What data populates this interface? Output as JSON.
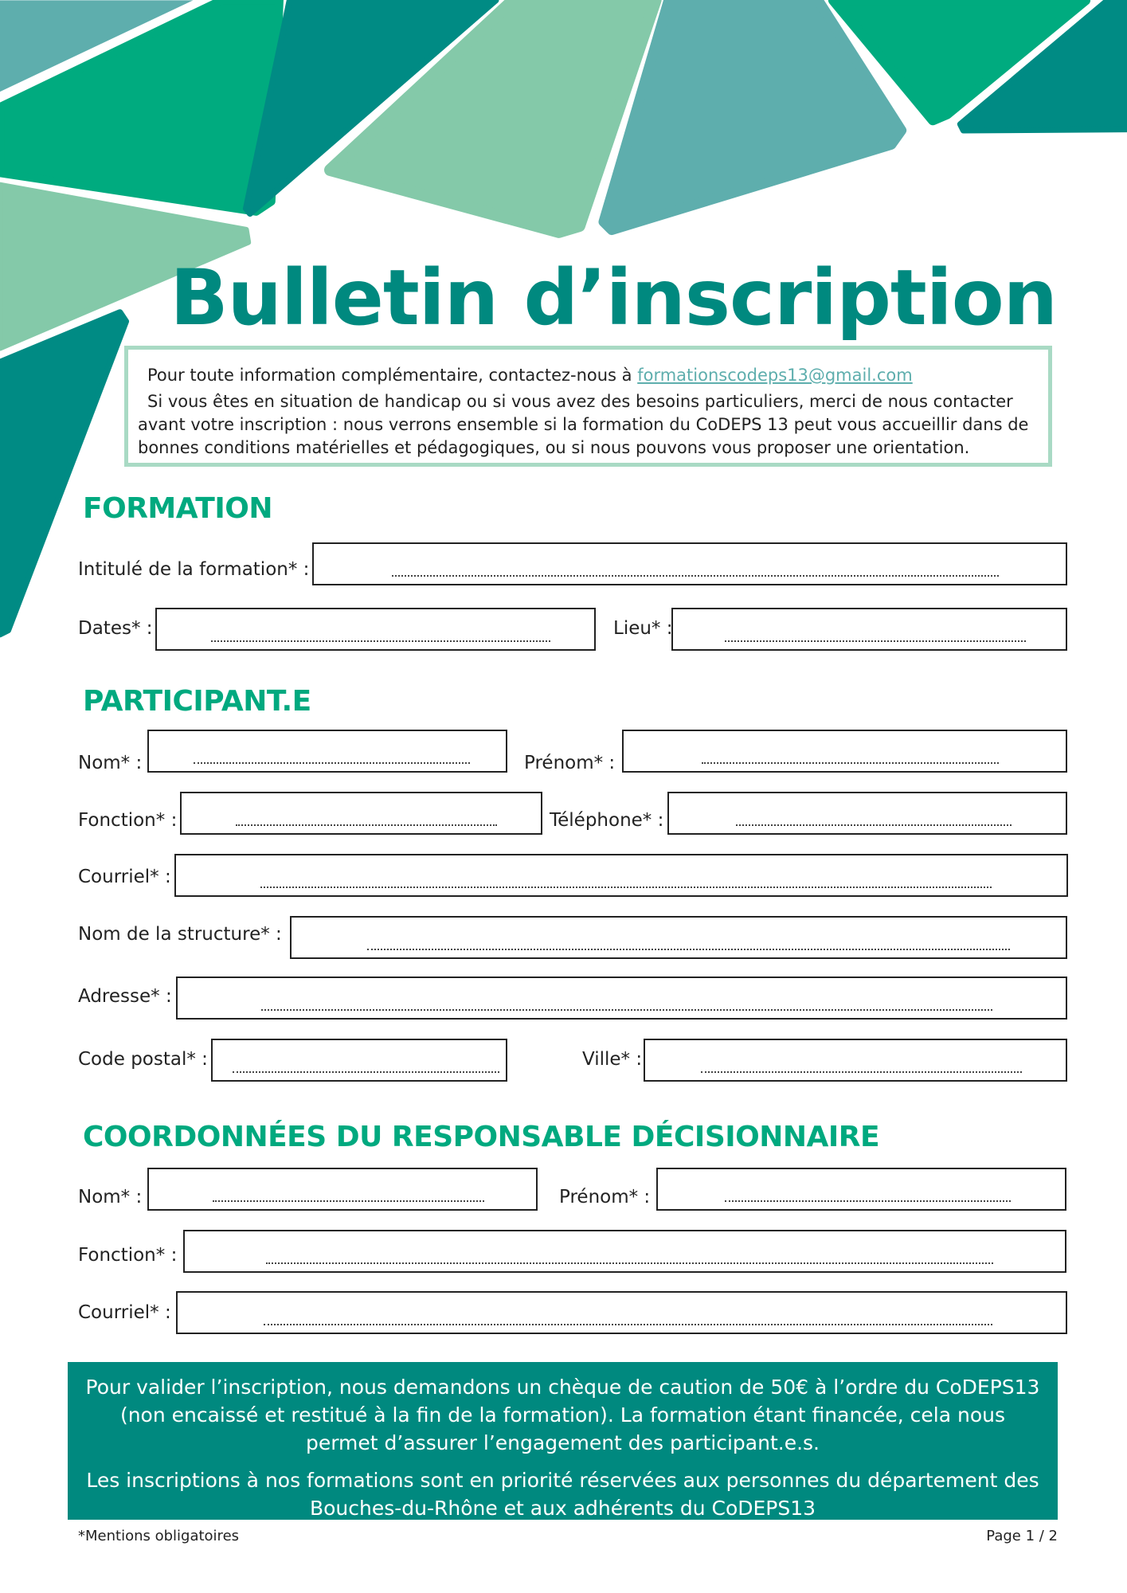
{
  "title": "Bulletin d’inscription",
  "info": {
    "line1_prefix": "Pour toute information complémentaire, contactez-nous à ",
    "email": "formationscodeps13@gmail.com",
    "line2": "Si vous êtes en situation de handicap ou si vous avez des besoins particuliers, merci de nous contacter avant votre inscription : nous verrons ensemble si la formation du CoDEPS 13 peut vous accueillir dans de bonnes conditions matérielles et pédagogiques, ou si nous pouvons vous proposer une orientation."
  },
  "sections": {
    "formation": {
      "heading": "FORMATION",
      "intitule": "Intitulé de la formation* :",
      "dates": "Dates* :",
      "lieu": "Lieu* :"
    },
    "participant": {
      "heading": "PARTICIPANT.E",
      "nom": "Nom* :",
      "prenom": "Prénom* :",
      "fonction": "Fonction* :",
      "telephone": "Téléphone* :",
      "courriel": "Courriel* :",
      "structure": "Nom de la structure* :",
      "adresse": "Adresse* :",
      "code_postal": "Code postal* :",
      "ville": "Ville* :"
    },
    "responsable": {
      "heading": "COORDONNÉES DU RESPONSABLE DÉCISIONNAIRE",
      "nom": "Nom* :",
      "prenom": "Prénom* :",
      "fonction": "Fonction* :",
      "courriel": "Courriel* :"
    }
  },
  "banner": {
    "p1": "Pour valider l’inscription, nous demandons un chèque de caution de 50€ à l’ordre du CoDEPS13 (non encaissé et restitué à la fin de la formation). La formation étant financée, cela nous permet d’assurer l’engagement des participant.e.s.",
    "p2": "Les inscriptions à nos formations sont en priorité réservées aux personnes du département des Bouches-du-Rhône et aux adhérents du CoDEPS13"
  },
  "footer": {
    "note": "*Mentions obligatoires",
    "page": "Page 1 / 2"
  },
  "colors": {
    "dark_teal": "#00897f",
    "green": "#00ab7f",
    "light_green": "#84c9a9",
    "blue_teal": "#5eaead",
    "box_border": "#a9dac4"
  }
}
